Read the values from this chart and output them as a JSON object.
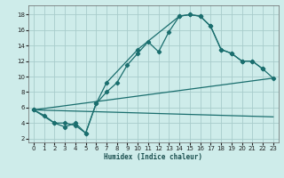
{
  "xlabel": "Humidex (Indice chaleur)",
  "xlim": [
    -0.5,
    23.5
  ],
  "ylim": [
    1.5,
    19.2
  ],
  "yticks": [
    2,
    4,
    6,
    8,
    10,
    12,
    14,
    16,
    18
  ],
  "xticks": [
    0,
    1,
    2,
    3,
    4,
    5,
    6,
    7,
    8,
    9,
    10,
    11,
    12,
    13,
    14,
    15,
    16,
    17,
    18,
    19,
    20,
    21,
    22,
    23
  ],
  "bg_color": "#ceecea",
  "grid_color": "#a8cccb",
  "line_color": "#1a6e6e",
  "curve1_x": [
    0,
    1,
    2,
    3,
    4,
    5,
    6,
    7,
    8,
    9,
    10,
    11,
    12,
    13,
    14,
    15,
    16,
    17,
    18,
    19,
    20,
    21,
    22
  ],
  "curve1_y": [
    5.7,
    5.0,
    4.0,
    4.0,
    3.7,
    2.7,
    6.5,
    8.0,
    9.2,
    11.5,
    13.0,
    14.5,
    13.2,
    15.8,
    17.8,
    18.0,
    17.8,
    16.5,
    13.5,
    13.0,
    12.0,
    12.0,
    11.0
  ],
  "curve2_x": [
    0,
    2,
    3,
    4,
    5,
    6,
    7,
    10,
    14,
    15,
    16,
    17,
    18,
    19,
    20,
    21,
    22,
    23
  ],
  "curve2_y": [
    5.7,
    4.0,
    3.5,
    4.0,
    2.7,
    6.5,
    9.2,
    13.5,
    17.8,
    18.0,
    17.8,
    16.5,
    13.5,
    13.0,
    12.0,
    12.0,
    11.0,
    9.8
  ],
  "line3_x": [
    0,
    23
  ],
  "line3_y": [
    5.7,
    9.8
  ],
  "line4_x": [
    0,
    23
  ],
  "line4_y": [
    5.7,
    4.8
  ]
}
